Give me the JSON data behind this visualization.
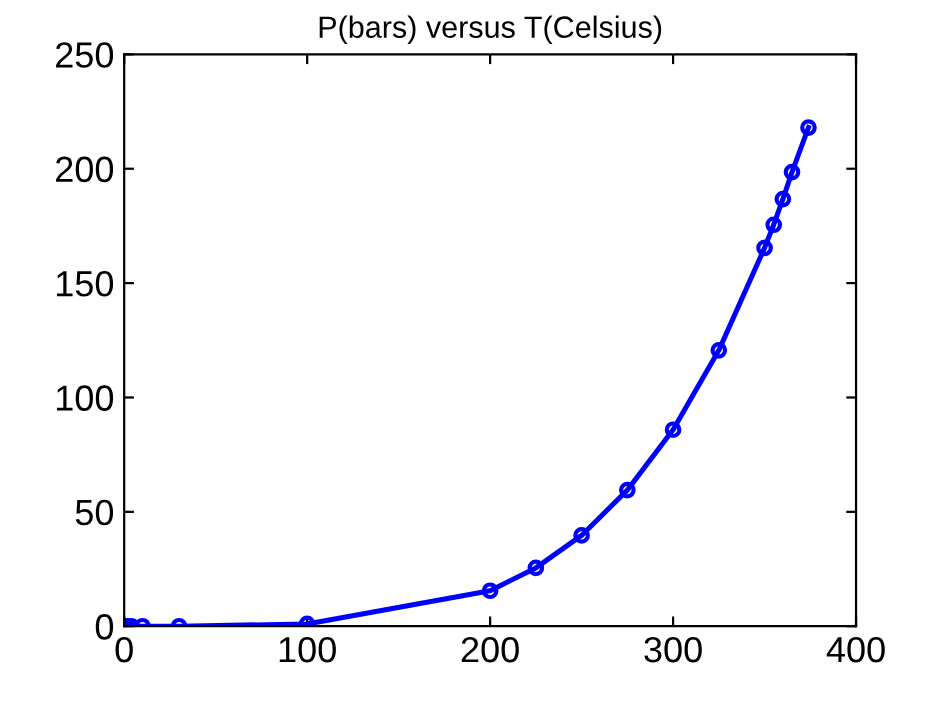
{
  "chart_data": {
    "type": "line",
    "title": "P(bars) versus T(Celsius)",
    "x": [
      0.01,
      2,
      4,
      10,
      30,
      100,
      200,
      225,
      250,
      275,
      300,
      325,
      350,
      355,
      360,
      365,
      374
    ],
    "series": [
      {
        "color": "#0000ff",
        "values": [
          0,
          0,
          0,
          0,
          0,
          1,
          15.5,
          25.5,
          39.7,
          59.5,
          85.9,
          120.6,
          165.4,
          175.5,
          186.7,
          198.5,
          218
        ]
      }
    ],
    "xlim": [
      0,
      400
    ],
    "ylim": [
      0,
      250
    ],
    "xticks": [
      0,
      100,
      200,
      300,
      400
    ],
    "yticks": [
      0,
      50,
      100,
      150,
      200,
      250
    ],
    "grid": false,
    "legend": false,
    "marker": "circle",
    "line_style": "solid"
  }
}
